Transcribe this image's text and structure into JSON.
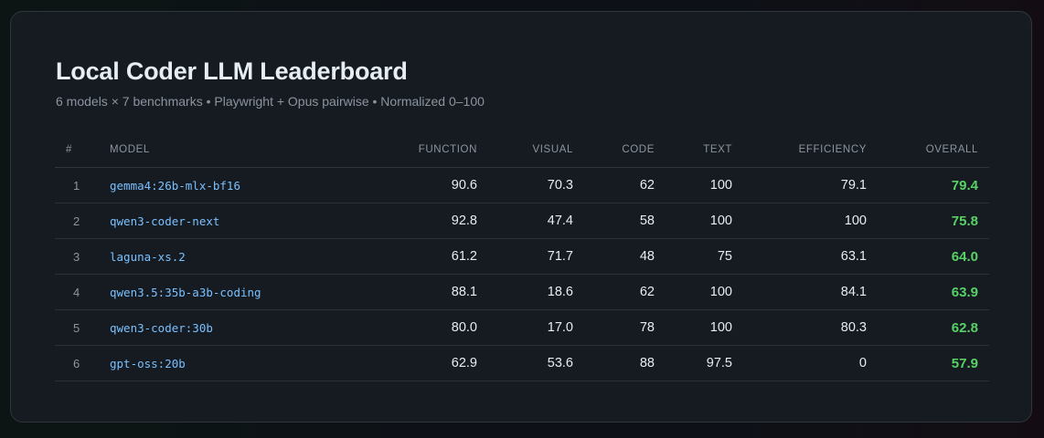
{
  "header": {
    "title": "Local Coder LLM Leaderboard",
    "subtitle": "6 models × 7 benchmarks • Playwright + Opus pairwise • Normalized 0–100"
  },
  "table": {
    "columns": [
      "#",
      "Model",
      "Function",
      "Visual",
      "Code",
      "Text",
      "Efficiency",
      "Overall"
    ],
    "rows": [
      {
        "rank": "1",
        "model": "gemma4:26b-mlx-bf16",
        "function": "90.6",
        "visual": "70.3",
        "code": "62",
        "text": "100",
        "efficiency": "79.1",
        "overall": "79.4"
      },
      {
        "rank": "2",
        "model": "qwen3-coder-next",
        "function": "92.8",
        "visual": "47.4",
        "code": "58",
        "text": "100",
        "efficiency": "100",
        "overall": "75.8"
      },
      {
        "rank": "3",
        "model": "laguna-xs.2",
        "function": "61.2",
        "visual": "71.7",
        "code": "48",
        "text": "75",
        "efficiency": "63.1",
        "overall": "64.0"
      },
      {
        "rank": "4",
        "model": "qwen3.5:35b-a3b-coding",
        "function": "88.1",
        "visual": "18.6",
        "code": "62",
        "text": "100",
        "efficiency": "84.1",
        "overall": "63.9"
      },
      {
        "rank": "5",
        "model": "qwen3-coder:30b",
        "function": "80.0",
        "visual": "17.0",
        "code": "78",
        "text": "100",
        "efficiency": "80.3",
        "overall": "62.8"
      },
      {
        "rank": "6",
        "model": "gpt-oss:20b",
        "function": "62.9",
        "visual": "53.6",
        "code": "88",
        "text": "97.5",
        "efficiency": "0",
        "overall": "57.9"
      }
    ]
  },
  "colors": {
    "background": "#0d1117",
    "card": "#161b22",
    "model_text": "#79c0ff",
    "overall_text": "#56d364",
    "muted_text": "#8b949e"
  }
}
